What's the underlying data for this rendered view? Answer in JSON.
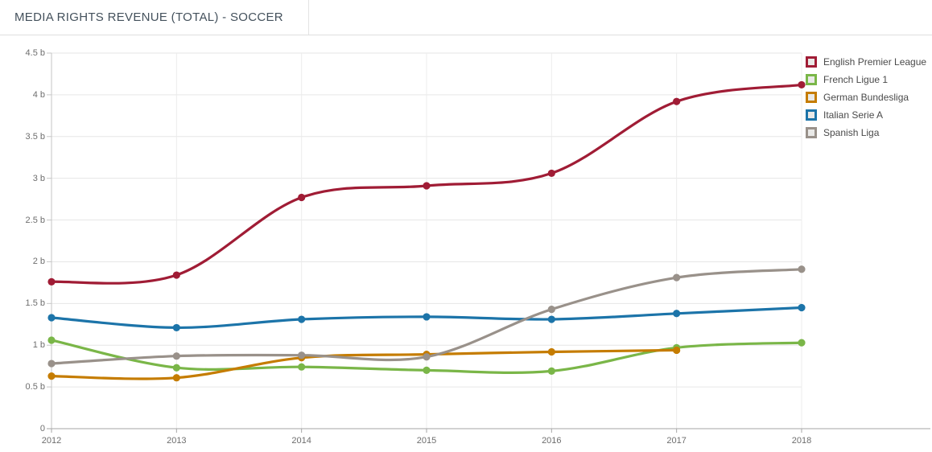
{
  "header": {
    "title": "MEDIA RIGHTS REVENUE (TOTAL) - SOCCER"
  },
  "colors": {
    "grid_horizontal": "#e6e6e6",
    "grid_vertical": "#ececec",
    "y_axis_line": "#c6c6c6",
    "x_axis_line": "#a6a6a6",
    "title_text": "#44515C",
    "tick_text": "#6e6e6e",
    "legend_text": "#4a4a4a"
  },
  "chart_data": {
    "type": "line",
    "title": "MEDIA RIGHTS REVENUE (TOTAL) - SOCCER",
    "x": [
      2012,
      2013,
      2014,
      2015,
      2016,
      2017,
      2018
    ],
    "x_labels": [
      "2012",
      "2013",
      "2014",
      "2015",
      "2016",
      "2017",
      "2018"
    ],
    "series": [
      {
        "name": "English Premier League",
        "color": "#A01C35",
        "values": [
          1.76,
          1.84,
          2.77,
          2.91,
          3.06,
          3.92,
          4.12
        ]
      },
      {
        "name": "French Ligue 1",
        "color": "#7AB648",
        "values": [
          1.06,
          0.73,
          0.74,
          0.7,
          0.69,
          0.97,
          1.03
        ]
      },
      {
        "name": "German Bundesliga",
        "color": "#C57C00",
        "values": [
          0.63,
          0.61,
          0.85,
          0.89,
          0.92,
          0.94,
          null
        ]
      },
      {
        "name": "Italian Serie A",
        "color": "#1C74A9",
        "values": [
          1.33,
          1.21,
          1.31,
          1.34,
          1.31,
          1.38,
          1.45
        ]
      },
      {
        "name": "Spanish Liga",
        "color": "#99918A",
        "values": [
          0.78,
          0.87,
          0.88,
          0.86,
          1.43,
          1.81,
          1.91
        ]
      }
    ],
    "ylim": [
      0,
      4.5
    ],
    "yticks": [
      {
        "value": 4.5,
        "label": "4.5 b"
      },
      {
        "value": 4,
        "label": "4 b"
      },
      {
        "value": 3.5,
        "label": "3.5 b"
      },
      {
        "value": 3,
        "label": "3 b"
      },
      {
        "value": 2.5,
        "label": "2.5 b"
      },
      {
        "value": 2,
        "label": "2 b"
      },
      {
        "value": 1.5,
        "label": "1.5 b"
      },
      {
        "value": 1,
        "label": "1 b"
      },
      {
        "value": 0.5,
        "label": "0.5 b"
      },
      {
        "value": 0,
        "label": "0"
      }
    ],
    "xlabel": "",
    "ylabel": "",
    "grid": true,
    "smoothed": true,
    "legend_position": "right-top"
  }
}
